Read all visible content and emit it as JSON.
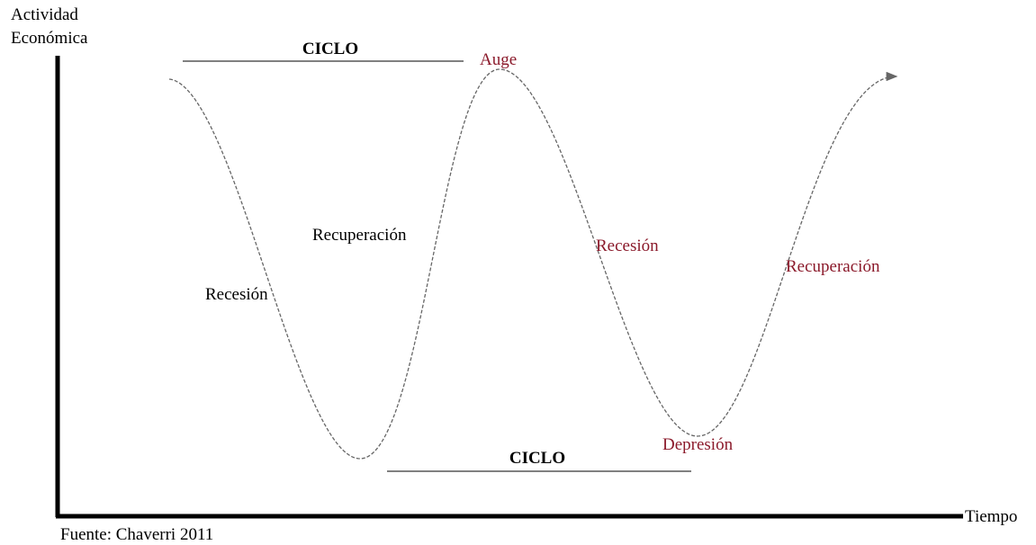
{
  "axes": {
    "y_label": [
      "Actividad",
      "Económica"
    ],
    "x_label": "Tiempo"
  },
  "cycles": [
    "CICLO",
    "CICLO"
  ],
  "phases": [
    "Recesión",
    "Recuperación",
    "Auge",
    "Recesión",
    "Depresión",
    "Recuperación"
  ],
  "source": "Fuente: Chaverri 2011"
}
